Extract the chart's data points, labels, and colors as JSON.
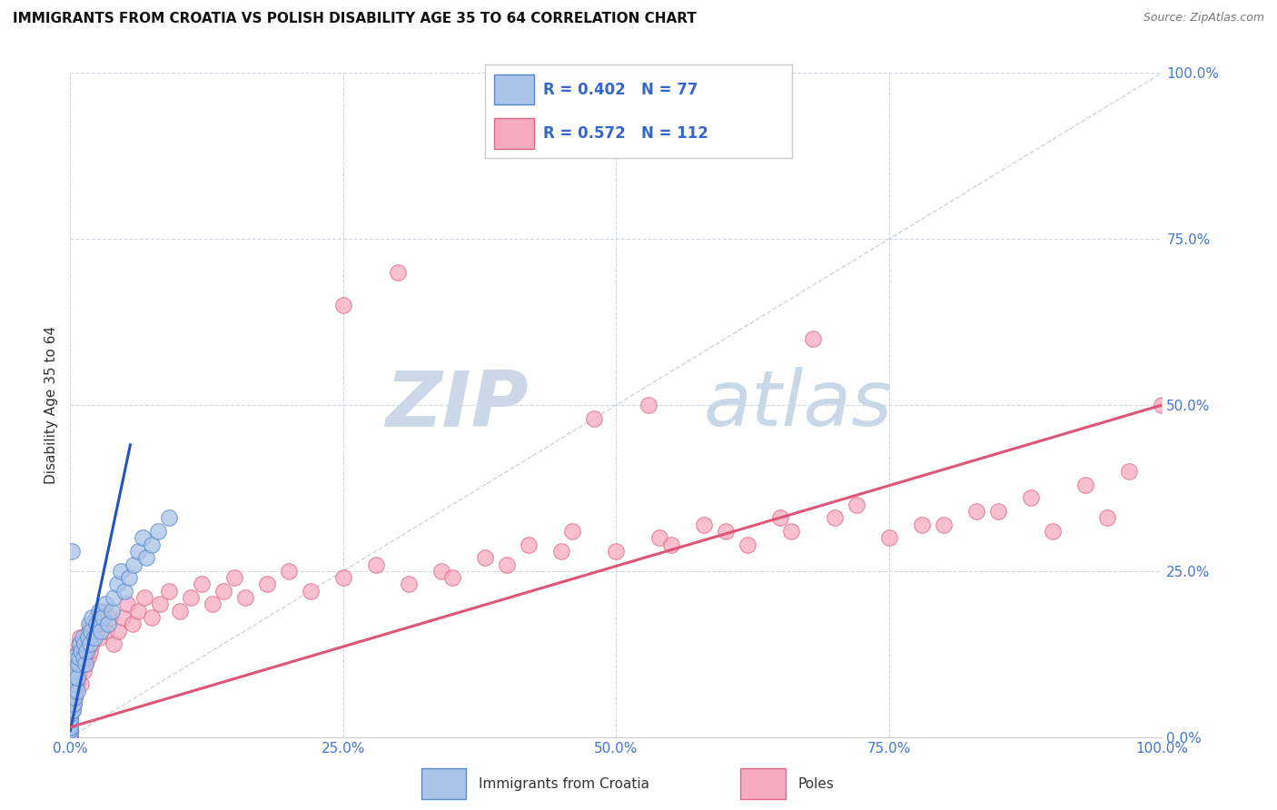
{
  "title": "IMMIGRANTS FROM CROATIA VS POLISH DISABILITY AGE 35 TO 64 CORRELATION CHART",
  "source": "Source: ZipAtlas.com",
  "ylabel_label": "Disability Age 35 to 64",
  "x_tick_labels": [
    "0.0%",
    "25.0%",
    "50.0%",
    "75.0%",
    "100.0%"
  ],
  "y_tick_labels": [
    "0.0%",
    "25.0%",
    "50.0%",
    "75.0%",
    "100.0%"
  ],
  "x_ticks": [
    0.0,
    0.25,
    0.5,
    0.75,
    1.0
  ],
  "y_ticks": [
    0.0,
    0.25,
    0.5,
    0.75,
    1.0
  ],
  "xlim": [
    0.0,
    1.0
  ],
  "ylim": [
    0.0,
    1.0
  ],
  "croatia_color": "#aac4e8",
  "poles_color": "#f5aabf",
  "croatia_edge": "#5588cc",
  "poles_edge": "#e06888",
  "croatia_line_color": "#2255bb",
  "poles_line_color": "#dd5577",
  "diag_color": "#b8c4d0",
  "watermark_zip": "ZIP",
  "watermark_atlas": "atlas",
  "watermark_color": "#ccd8e8",
  "legend_label_croatia": "Immigrants from Croatia",
  "legend_label_poles": "Poles",
  "legend_R_croatia": "0.402",
  "legend_N_croatia": "77",
  "legend_R_poles": "0.572",
  "legend_N_poles": "112",
  "croatia_line_x0": 0.0,
  "croatia_line_y0": 0.01,
  "croatia_line_x1": 0.055,
  "croatia_line_y1": 0.44,
  "poles_line_x0": 0.0,
  "poles_line_y0": 0.015,
  "poles_line_x1": 1.0,
  "poles_line_y1": 0.5,
  "croatia_x": [
    0.0,
    0.0,
    0.0,
    0.0,
    0.0,
    0.0,
    0.0,
    0.0,
    0.0,
    0.0,
    0.0,
    0.0,
    0.0,
    0.0,
    0.0,
    0.0,
    0.0,
    0.0,
    0.0,
    0.0,
    0.0,
    0.0,
    0.0,
    0.0,
    0.0,
    0.0,
    0.0,
    0.0,
    0.0,
    0.0,
    0.001,
    0.001,
    0.002,
    0.002,
    0.002,
    0.003,
    0.003,
    0.004,
    0.004,
    0.005,
    0.005,
    0.006,
    0.006,
    0.007,
    0.008,
    0.009,
    0.01,
    0.011,
    0.012,
    0.013,
    0.014,
    0.015,
    0.016,
    0.017,
    0.018,
    0.019,
    0.02,
    0.022,
    0.024,
    0.026,
    0.028,
    0.03,
    0.032,
    0.035,
    0.038,
    0.04,
    0.043,
    0.046,
    0.05,
    0.054,
    0.058,
    0.062,
    0.066,
    0.07,
    0.075,
    0.08,
    0.09
  ],
  "croatia_y": [
    0.0,
    0.005,
    0.01,
    0.015,
    0.02,
    0.025,
    0.03,
    0.035,
    0.04,
    0.045,
    0.05,
    0.055,
    0.06,
    0.065,
    0.07,
    0.075,
    0.08,
    0.085,
    0.09,
    0.095,
    0.1,
    0.105,
    0.11,
    0.115,
    0.12,
    0.015,
    0.025,
    0.035,
    0.045,
    0.055,
    0.28,
    0.07,
    0.04,
    0.06,
    0.08,
    0.05,
    0.07,
    0.09,
    0.06,
    0.08,
    0.1,
    0.07,
    0.09,
    0.11,
    0.12,
    0.14,
    0.13,
    0.15,
    0.12,
    0.14,
    0.11,
    0.13,
    0.15,
    0.17,
    0.14,
    0.16,
    0.18,
    0.15,
    0.17,
    0.19,
    0.16,
    0.18,
    0.2,
    0.17,
    0.19,
    0.21,
    0.23,
    0.25,
    0.22,
    0.24,
    0.26,
    0.28,
    0.3,
    0.27,
    0.29,
    0.31,
    0.33
  ],
  "poles_x": [
    0.0,
    0.0,
    0.0,
    0.0,
    0.0,
    0.0,
    0.0,
    0.0,
    0.0,
    0.0,
    0.0,
    0.0,
    0.0,
    0.0,
    0.0,
    0.0,
    0.0,
    0.0,
    0.0,
    0.0,
    0.001,
    0.002,
    0.002,
    0.003,
    0.003,
    0.004,
    0.004,
    0.005,
    0.005,
    0.006,
    0.006,
    0.007,
    0.007,
    0.008,
    0.008,
    0.009,
    0.009,
    0.01,
    0.01,
    0.011,
    0.012,
    0.013,
    0.014,
    0.015,
    0.016,
    0.017,
    0.018,
    0.019,
    0.02,
    0.022,
    0.024,
    0.026,
    0.028,
    0.03,
    0.033,
    0.036,
    0.04,
    0.044,
    0.048,
    0.052,
    0.057,
    0.062,
    0.068,
    0.075,
    0.082,
    0.09,
    0.1,
    0.11,
    0.12,
    0.13,
    0.14,
    0.15,
    0.16,
    0.18,
    0.2,
    0.22,
    0.25,
    0.28,
    0.31,
    0.34,
    0.38,
    0.42,
    0.46,
    0.5,
    0.54,
    0.58,
    0.62,
    0.66,
    0.7,
    0.75,
    0.8,
    0.85,
    0.9,
    0.95,
    1.0,
    0.35,
    0.4,
    0.45,
    0.55,
    0.6,
    0.65,
    0.72,
    0.78,
    0.83,
    0.88,
    0.93,
    0.97,
    0.25,
    0.3,
    0.48,
    0.53,
    0.68
  ],
  "poles_y": [
    0.0,
    0.005,
    0.01,
    0.015,
    0.02,
    0.025,
    0.03,
    0.035,
    0.04,
    0.045,
    0.05,
    0.055,
    0.06,
    0.065,
    0.07,
    0.075,
    0.08,
    0.085,
    0.09,
    0.095,
    0.06,
    0.04,
    0.08,
    0.05,
    0.09,
    0.06,
    0.1,
    0.07,
    0.11,
    0.08,
    0.12,
    0.09,
    0.13,
    0.1,
    0.14,
    0.11,
    0.15,
    0.12,
    0.08,
    0.13,
    0.1,
    0.14,
    0.11,
    0.15,
    0.12,
    0.16,
    0.13,
    0.17,
    0.14,
    0.16,
    0.18,
    0.15,
    0.17,
    0.19,
    0.16,
    0.18,
    0.14,
    0.16,
    0.18,
    0.2,
    0.17,
    0.19,
    0.21,
    0.18,
    0.2,
    0.22,
    0.19,
    0.21,
    0.23,
    0.2,
    0.22,
    0.24,
    0.21,
    0.23,
    0.25,
    0.22,
    0.24,
    0.26,
    0.23,
    0.25,
    0.27,
    0.29,
    0.31,
    0.28,
    0.3,
    0.32,
    0.29,
    0.31,
    0.33,
    0.3,
    0.32,
    0.34,
    0.31,
    0.33,
    0.5,
    0.24,
    0.26,
    0.28,
    0.29,
    0.31,
    0.33,
    0.35,
    0.32,
    0.34,
    0.36,
    0.38,
    0.4,
    0.65,
    0.7,
    0.48,
    0.5,
    0.6
  ]
}
